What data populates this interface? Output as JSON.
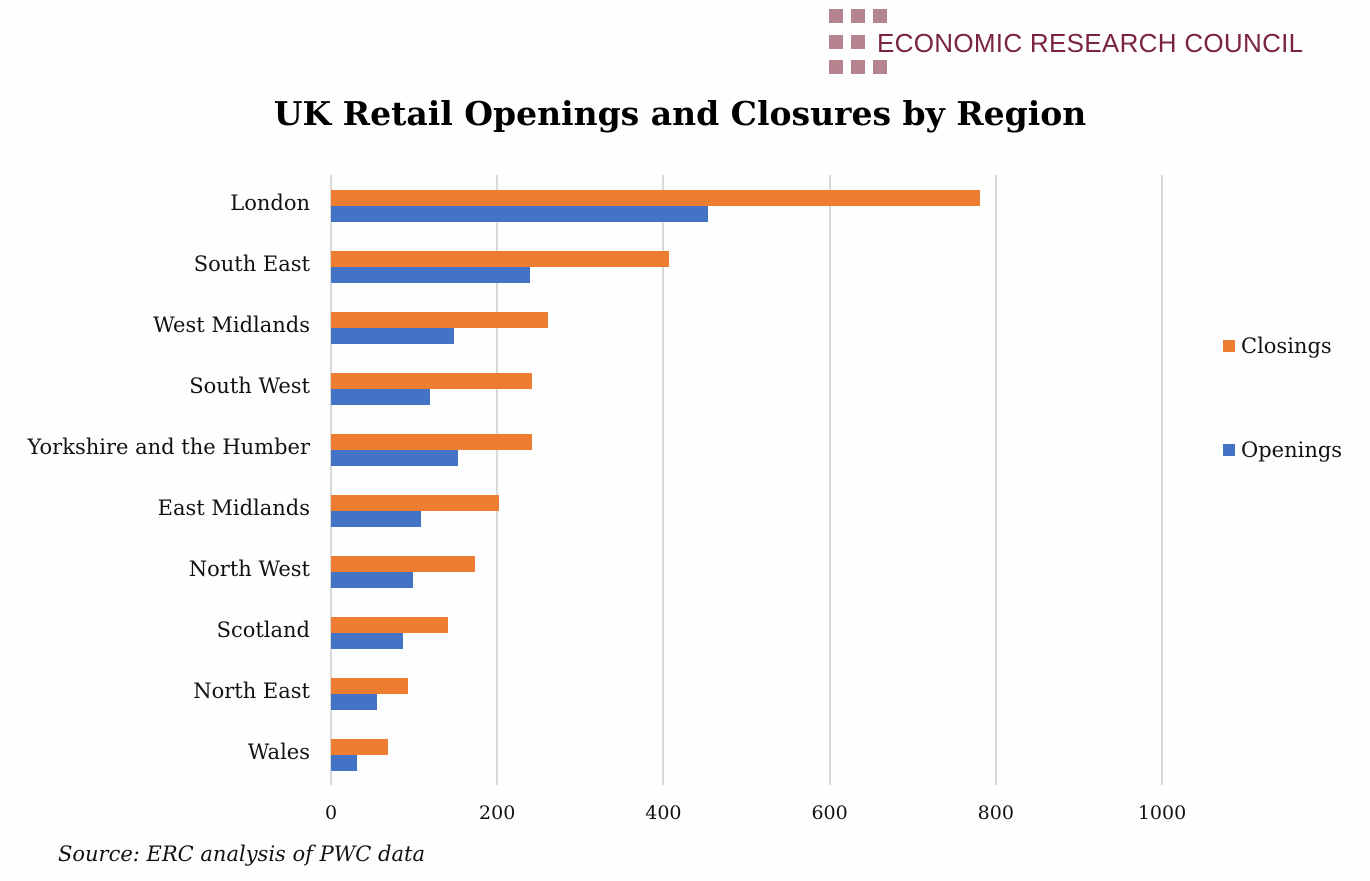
{
  "logo": {
    "text": "ECONOMIC RESEARCH COUNCIL",
    "color": "#7a2345",
    "square_color": "#b5848f"
  },
  "title": "UK Retail Openings and Closures by Region",
  "source": "Source: ERC analysis of PWC data",
  "legend": [
    {
      "label": "Closings",
      "color": "#ed7d31"
    },
    {
      "label": "Openings",
      "color": "#4472c4"
    }
  ],
  "axis": {
    "ticks": [
      "0",
      "200",
      "400",
      "600",
      "800",
      "1000"
    ]
  },
  "chart_data": {
    "type": "bar",
    "orientation": "horizontal",
    "title": "UK Retail Openings and Closures by Region",
    "xlabel": "",
    "ylabel": "",
    "xlim": [
      0,
      1000
    ],
    "grid": true,
    "legend_position": "right",
    "categories": [
      "London",
      "South East",
      "West Midlands",
      "South West",
      "Yorkshire and the Humber",
      "East Midlands",
      "North West",
      "Scotland",
      "North East",
      "Wales"
    ],
    "series": [
      {
        "name": "Closings",
        "color": "#ed7d31",
        "values": [
          781,
          407,
          261,
          242,
          242,
          202,
          173,
          141,
          93,
          69
        ]
      },
      {
        "name": "Openings",
        "color": "#4472c4",
        "values": [
          454,
          240,
          148,
          119,
          153,
          108,
          99,
          87,
          55,
          31
        ]
      }
    ],
    "annotations": [
      "Source: ERC analysis of PWC data"
    ]
  }
}
